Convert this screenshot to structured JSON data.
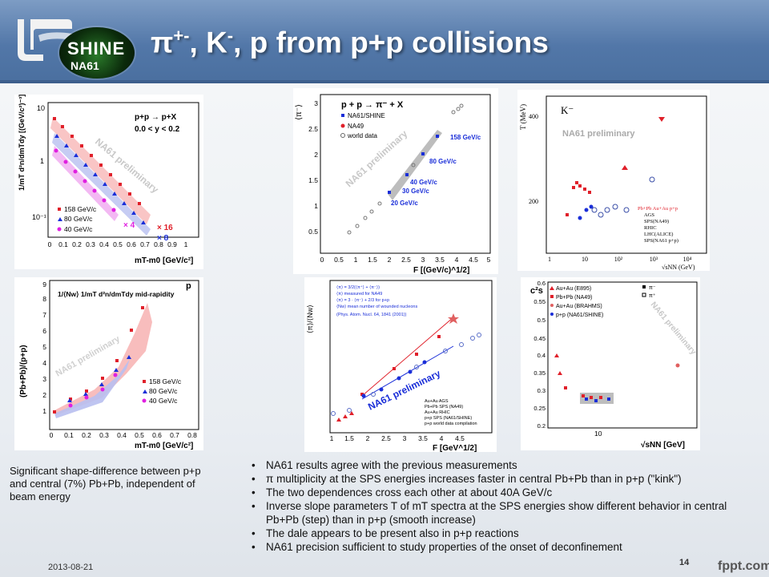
{
  "title": {
    "main": "π",
    "sup": "+-",
    "mid": ", K",
    "sup2": "-",
    "rest": ", p from p+p collisions"
  },
  "logo": {
    "shine": "SHINE",
    "na61": "NA61"
  },
  "panels": {
    "p1": {
      "reaction": "p+p → p+X",
      "range": "0.0 < y < 0.2",
      "ylabel": "1/mT d²n/dmTdy [(GeV/c²)⁻³]",
      "watermark": "NA61 preliminary",
      "xlabel": "mT-m0 [GeV/c²]",
      "yticks": [
        "10",
        "1",
        "10⁻¹"
      ],
      "xticks": [
        "0",
        "0.1",
        "0.2",
        "0.3",
        "0.4",
        "0.5",
        "0.6",
        "0.7",
        "0.8",
        "0.9",
        "1"
      ],
      "legend": [
        "158 GeV/c",
        "80 GeV/c",
        "40 GeV/c"
      ],
      "scales": [
        "× 16",
        "× 4",
        "× 8"
      ]
    },
    "p2": {
      "reaction": "p + p → π⁻ + X",
      "legend": [
        "NA61/SHINE",
        "NA49",
        "world data"
      ],
      "ylabel": "⟨π⁻⟩",
      "watermark": "NA61 preliminary",
      "xlabel": "F [(GeV/c)^1/2]",
      "yticks": [
        "0.5",
        "1",
        "1.5",
        "2",
        "2.5",
        "3"
      ],
      "xticks": [
        "0",
        "0.5",
        "1",
        "1.5",
        "2",
        "2.5",
        "3",
        "3.5",
        "4",
        "4.5",
        "5"
      ],
      "energies": [
        "158 GeV/c",
        "80 GeV/c",
        "40 GeV/c",
        "30 GeV/c",
        "20 GeV/c"
      ]
    },
    "p3": {
      "particle": "K⁻",
      "watermark": "NA61 preliminary",
      "ylabel": "T (MeV)",
      "yticks": [
        "400",
        "200"
      ],
      "xticks": [
        "1",
        "10",
        "10²",
        "10³",
        "10⁴"
      ],
      "xlabel": "√sNN (GeV)",
      "legend_title": "Pb+Pb Au+Au p+p",
      "legend": [
        "AGS",
        "SPS(NA49)",
        "RHIC",
        "LHC(ALICE)",
        "SPS(NA61 p+p)"
      ]
    },
    "p4": {
      "formula": "1/⟨Nw⟩ 1/mT d²n/dmTdy mid-rapidity",
      "particle": "p",
      "ylabel": "(Pb+Pb)/(p+p)",
      "watermark": "NA61 preliminary",
      "xlabel": "mT-m0 [GeV/c²]",
      "yticks": [
        "1",
        "2",
        "3",
        "4",
        "5",
        "6",
        "7",
        "8",
        "9"
      ],
      "xticks": [
        "0",
        "0.1",
        "0.2",
        "0.3",
        "0.4",
        "0.5",
        "0.6",
        "0.7",
        "0.8"
      ],
      "legend": [
        "158 GeV/c",
        "80 GeV/c",
        "40 GeV/c"
      ]
    },
    "p5": {
      "notes": [
        "⟨π⟩ = 3/2(⟨π⁺⟩ + ⟨π⁻⟩)",
        "⟨π⟩ measured for NA49",
        "⟨π⟩ = 3 · ⟨π⁻⟩ + 2/3 for p+p",
        "⟨Nw⟩ mean number of wounded nucleons",
        "(Phys. Atom. Nucl. 64, 1841 (2001))"
      ],
      "ylabel": "⟨π⟩/⟨Nw⟩",
      "watermark": "NA61 preliminary",
      "xlabel": "F [GeV^1/2]",
      "legend": [
        "Au+Au AGS",
        "Pb+Pb SPS (NA49)",
        "Au+Au RHIC",
        "p+p SPS (NA61/SHINE)",
        "p+p world data compilation"
      ],
      "xticks": [
        "1",
        "1.5",
        "2",
        "2.5",
        "3",
        "3.5",
        "4",
        "4.5"
      ]
    },
    "p6": {
      "ylabel": "c²s",
      "legend": [
        "Au+Au (E895)",
        "Pb+Pb (NA49)",
        "Au+Au (BRAHMS)",
        "p+p (NA61/SHINE)"
      ],
      "legend2": [
        "π⁻",
        "π⁺"
      ],
      "watermark": "NA61 preliminary",
      "xlabel": "√sNN [GeV]",
      "yticks": [
        "0.6",
        "0.55",
        "0.5",
        "0.45",
        "0.4",
        "0.35",
        "0.3",
        "0.25",
        "0.2"
      ],
      "xtick": "10"
    }
  },
  "caption": "Significant shape-difference between p+p and central (7%) Pb+Pb, independent of beam energy",
  "bullets": [
    "NA61 results agree with the previous measurements",
    "π multiplicity at the SPS energies increases faster in central Pb+Pb than in p+p (\"kink\")",
    "The two dependences cross each other at about 40A GeV/c",
    "Inverse slope parameters T of mT spectra at the SPS energies show different behavior in central Pb+Pb (step) than in p+p (smooth increase)",
    "The dale appears to be present also in p+p reactions",
    "NA61 precision sufficient to study properties of the onset of deconfinement"
  ],
  "footer": {
    "date": "2013-08-21",
    "page": "14",
    "brand": "fppt.com"
  },
  "colors": {
    "header": "#5277a8",
    "red": "#e0202a",
    "blue": "#1a2ed8",
    "magenta": "#e020e0"
  }
}
